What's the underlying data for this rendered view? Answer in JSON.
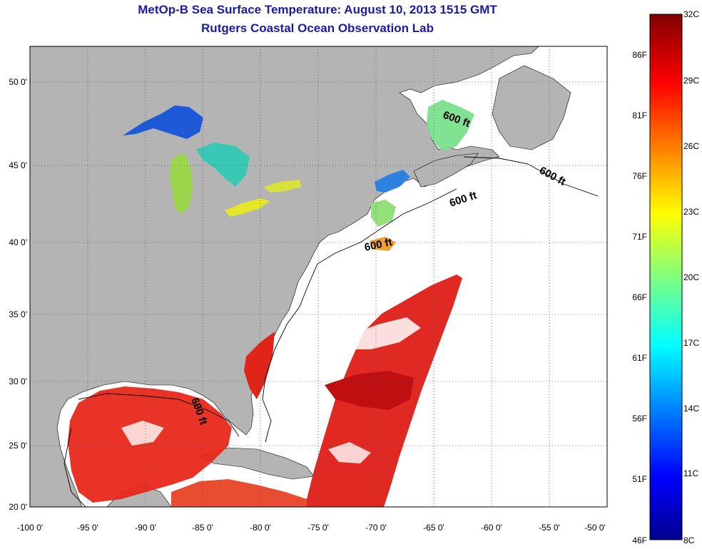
{
  "header": {
    "title": "MetOp-B Sea Surface Temperature:  August 10, 2013 1515 GMT",
    "subtitle": "Rutgers Coastal Ocean Observation Lab"
  },
  "map": {
    "lon_range": [
      -100,
      -50
    ],
    "lat_range": [
      20,
      52
    ],
    "x_ticks": [
      "-100 0'",
      "-95 0'",
      "-90 0'",
      "-85 0'",
      "-80 0'",
      "-75 0'",
      "-70 0'",
      "-65 0'",
      "-60 0'",
      "-55 0'",
      "-50 0'"
    ],
    "y_ticks": [
      "50 0'",
      "45 0'",
      "40 0'",
      "35 0'",
      "30 0'",
      "25 0'",
      "20 0'"
    ],
    "grid": "dotted",
    "contour_labels": [
      "600 ft",
      "600 ft",
      "600 ft",
      "600 ft",
      "600 ft"
    ],
    "land_color": "#b4b4b4",
    "no_data_color": "#ffffff"
  },
  "colorbar": {
    "celsius_labels": [
      "32C",
      "29C",
      "26C",
      "23C",
      "20C",
      "17C",
      "14C",
      "11C",
      "8C"
    ],
    "fahrenheit_labels": [
      "86F",
      "81F",
      "76F",
      "71F",
      "66F",
      "61F",
      "56F",
      "51F",
      "46F"
    ],
    "scale": "jet",
    "range_c": [
      8,
      32
    ]
  }
}
